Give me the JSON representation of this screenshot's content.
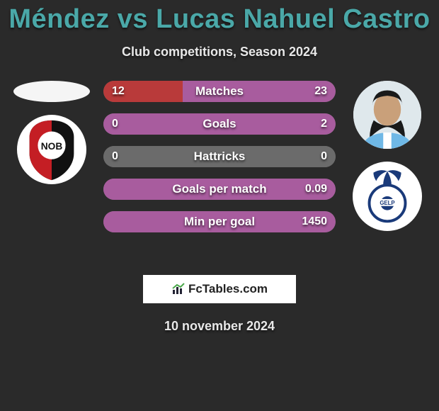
{
  "title": "Méndez vs Lucas Nahuel Castro",
  "subtitle": "Club competitions, Season 2024",
  "date": "10 november 2024",
  "brand": "FcTables.com",
  "colors": {
    "background": "#2a2a2a",
    "title": "#4aa8a8",
    "text": "#e8e8e8",
    "bar_left_active": "#b93a3a",
    "bar_left_inactive": "#6b6b6b",
    "bar_right_active": "#a85c9e",
    "bar_right_inactive": "#6b6b6b",
    "bar_base": "#6b6b6b",
    "brand_box_bg": "#ffffff",
    "brand_text": "#222222"
  },
  "players": {
    "left": {
      "name": "Méndez",
      "club": "Newell's Old Boys"
    },
    "right": {
      "name": "Lucas Nahuel Castro",
      "club": "Gimnasia La Plata"
    }
  },
  "bars": [
    {
      "label": "Matches",
      "left": "12",
      "right": "23",
      "left_pct": 34,
      "right_pct": 66,
      "left_color": "#b93a3a",
      "right_color": "#a85c9e"
    },
    {
      "label": "Goals",
      "left": "0",
      "right": "2",
      "left_pct": 0,
      "right_pct": 100,
      "left_color": "#6b6b6b",
      "right_color": "#a85c9e"
    },
    {
      "label": "Hattricks",
      "left": "0",
      "right": "0",
      "left_pct": 50,
      "right_pct": 50,
      "left_color": "#6b6b6b",
      "right_color": "#6b6b6b"
    },
    {
      "label": "Goals per match",
      "left": "",
      "right": "0.09",
      "left_pct": 0,
      "right_pct": 100,
      "left_color": "#6b6b6b",
      "right_color": "#a85c9e"
    },
    {
      "label": "Min per goal",
      "left": "",
      "right": "1450",
      "left_pct": 0,
      "right_pct": 100,
      "left_color": "#6b6b6b",
      "right_color": "#a85c9e"
    }
  ]
}
